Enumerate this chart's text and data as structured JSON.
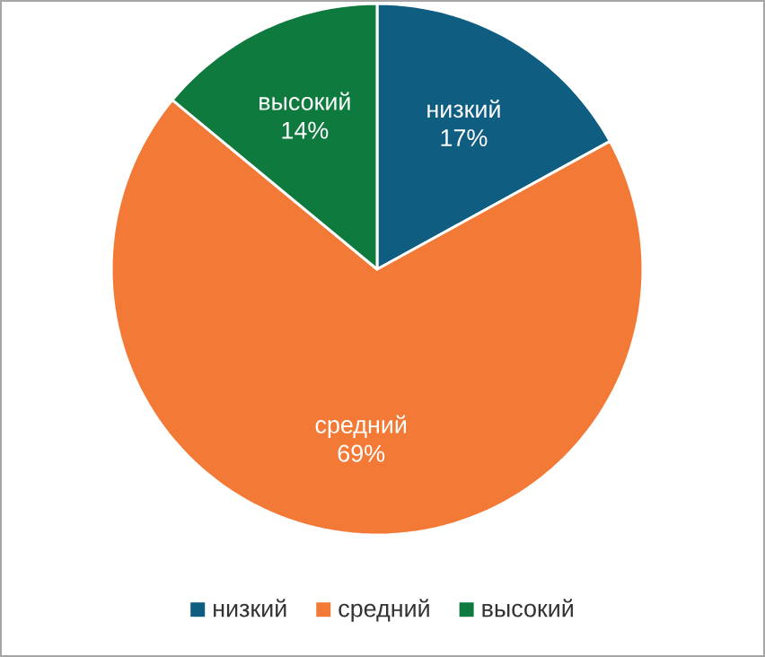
{
  "chart_data": {
    "type": "pie",
    "categories": [
      "низкий",
      "средний",
      "высокий"
    ],
    "values": [
      17,
      69,
      14
    ],
    "colors": [
      "#0f5e82",
      "#f27a36",
      "#0f7a3e"
    ],
    "value_labels": [
      "17%",
      "69%",
      "14%"
    ],
    "legend": "bottom"
  }
}
